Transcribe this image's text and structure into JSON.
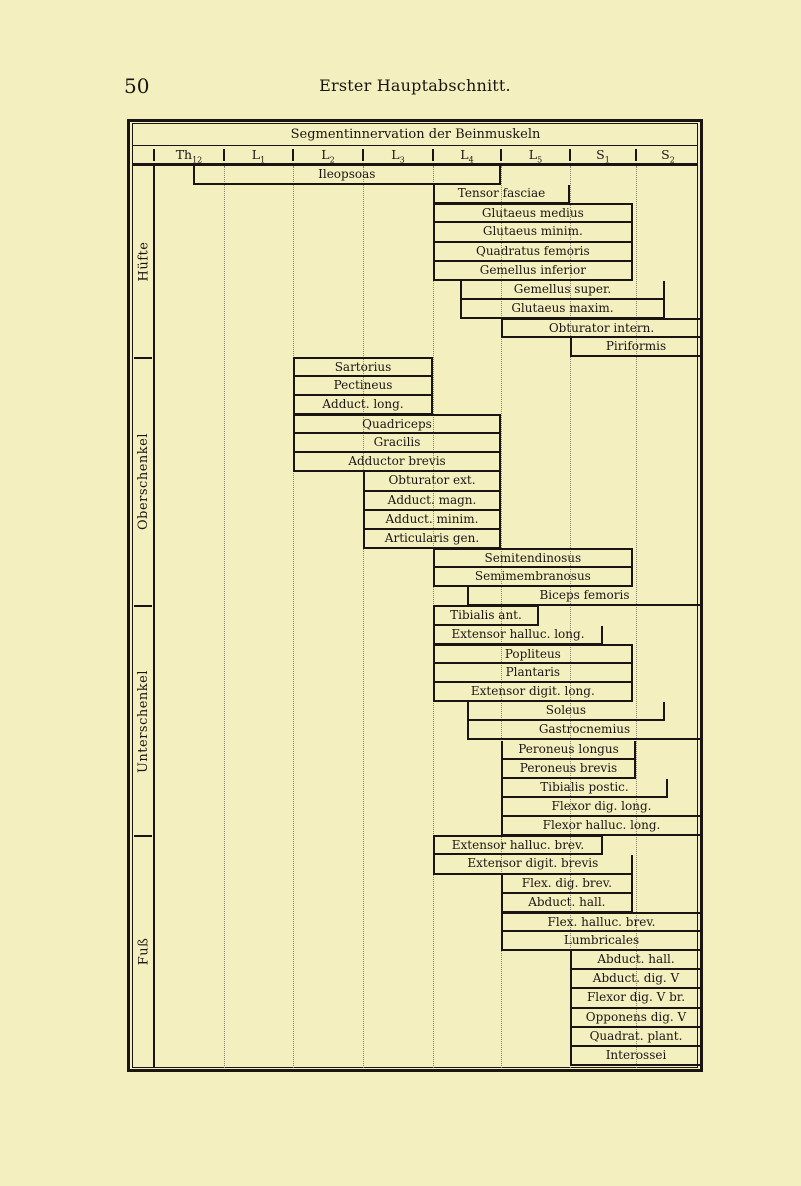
{
  "page": {
    "number": "50",
    "running_title": "Erster Hauptabschnitt."
  },
  "colors": {
    "paper": "#f4efbf",
    "ink": "#1a1512",
    "dotted": "#8a8270"
  },
  "chart_data": {
    "type": "table",
    "title": "Segmentinnervation der Beinmuskeln",
    "columns": [
      "Th12",
      "L1",
      "L2",
      "L3",
      "L4",
      "L5",
      "S1",
      "S2"
    ],
    "column_labels": [
      {
        "base": "Th",
        "sub": "12"
      },
      {
        "base": "L",
        "sub": "1"
      },
      {
        "base": "L",
        "sub": "2"
      },
      {
        "base": "L",
        "sub": "3"
      },
      {
        "base": "L",
        "sub": "4"
      },
      {
        "base": "L",
        "sub": "5"
      },
      {
        "base": "S",
        "sub": "1"
      },
      {
        "base": "S",
        "sub": "2"
      }
    ],
    "note": "span values are segment positions: 0 = start of Th12, 8 = end of S2",
    "sections": [
      {
        "name": "Hüfte",
        "muscles": [
          {
            "label": "Ileopsoas",
            "from": 0.55,
            "to": 5.0,
            "l": true,
            "r": true
          },
          {
            "label": "Tensor fasciae",
            "from": 4.0,
            "to": 6.0,
            "l": true,
            "r": true
          },
          {
            "label": "Glutaeus medius",
            "from": 4.0,
            "to": 6.95,
            "l": true,
            "r": true,
            "t": true
          },
          {
            "label": "Glutaeus minim.",
            "from": 4.0,
            "to": 6.95,
            "l": true,
            "r": true
          },
          {
            "label": "Quadratus femoris",
            "from": 4.0,
            "to": 6.95,
            "l": true,
            "r": true
          },
          {
            "label": "Gemellus inferior",
            "from": 4.0,
            "to": 6.95,
            "l": true,
            "r": true
          },
          {
            "label": "Gemellus super.",
            "from": 4.4,
            "to": 7.45,
            "l": true,
            "r": true
          },
          {
            "label": "Glutaeus maxim.",
            "from": 4.4,
            "to": 7.45,
            "l": true,
            "r": true
          },
          {
            "label": "Obturator intern.",
            "from": 5.0,
            "to": 8.0,
            "l": true,
            "r": false,
            "t": true
          },
          {
            "label": "Piriformis",
            "from": 6.0,
            "to": 8.0,
            "l": true,
            "r": false
          }
        ]
      },
      {
        "name": "Oberschenkel",
        "muscles": [
          {
            "label": "Sartorius",
            "from": 2.0,
            "to": 4.0,
            "l": true,
            "r": true,
            "t": true
          },
          {
            "label": "Pectineus",
            "from": 2.0,
            "to": 4.0,
            "l": true,
            "r": true
          },
          {
            "label": "Adduct. long.",
            "from": 2.0,
            "to": 4.0,
            "l": true,
            "r": true
          },
          {
            "label": "Quadriceps",
            "from": 2.0,
            "to": 5.0,
            "l": true,
            "r": true,
            "t": true
          },
          {
            "label": "Gracilis",
            "from": 2.0,
            "to": 5.0,
            "l": true,
            "r": true
          },
          {
            "label": "Adductor brevis",
            "from": 2.0,
            "to": 5.0,
            "l": true,
            "r": true
          },
          {
            "label": "Obturator ext.",
            "from": 3.0,
            "to": 5.0,
            "l": true,
            "r": true
          },
          {
            "label": "Adduct. magn.",
            "from": 3.0,
            "to": 5.0,
            "l": true,
            "r": true
          },
          {
            "label": "Adduct. minim.",
            "from": 3.0,
            "to": 5.0,
            "l": true,
            "r": true
          },
          {
            "label": "Articularis gen.",
            "from": 3.0,
            "to": 5.0,
            "l": true,
            "r": true
          },
          {
            "label": "Semitendinosus",
            "from": 4.0,
            "to": 6.95,
            "l": true,
            "r": true,
            "t": true
          },
          {
            "label": "Semimembranosus",
            "from": 4.0,
            "to": 6.95,
            "l": true,
            "r": true
          },
          {
            "label": "Biceps femoris",
            "from": 4.5,
            "to": 8.0,
            "l": true,
            "r": false
          }
        ]
      },
      {
        "name": "Unterschenkel",
        "muscles": [
          {
            "label": "Tibialis ant.",
            "from": 4.0,
            "to": 5.55,
            "l": true,
            "r": true,
            "t": true
          },
          {
            "label": "Extensor halluc. long.",
            "from": 4.0,
            "to": 6.5,
            "l": true,
            "r": true
          },
          {
            "label": "Popliteus",
            "from": 4.0,
            "to": 6.95,
            "l": true,
            "r": true,
            "t": true
          },
          {
            "label": "Plantaris",
            "from": 4.0,
            "to": 6.95,
            "l": true,
            "r": true
          },
          {
            "label": "Extensor digit. long.",
            "from": 4.0,
            "to": 6.95,
            "l": true,
            "r": true
          },
          {
            "label": "Soleus",
            "from": 4.5,
            "to": 7.45,
            "l": true,
            "r": true
          },
          {
            "label": "Gastrocnemius",
            "from": 4.5,
            "to": 8.0,
            "l": true,
            "r": false
          },
          {
            "label": "Peroneus longus",
            "from": 5.0,
            "to": 7.0,
            "l": true,
            "r": true
          },
          {
            "label": "Peroneus brevis",
            "from": 5.0,
            "to": 7.0,
            "l": true,
            "r": true
          },
          {
            "label": "Tibialis postic.",
            "from": 5.0,
            "to": 7.5,
            "l": true,
            "r": true
          },
          {
            "label": "Flexor dig. long.",
            "from": 5.0,
            "to": 8.0,
            "l": true,
            "r": false
          },
          {
            "label": "Flexor halluc. long.",
            "from": 5.0,
            "to": 8.0,
            "l": true,
            "r": false
          }
        ]
      },
      {
        "name": "Fuß",
        "muscles": [
          {
            "label": "Extensor halluc. brev.",
            "from": 4.0,
            "to": 6.5,
            "l": true,
            "r": true,
            "t": true
          },
          {
            "label": "Extensor digit. brevis",
            "from": 4.0,
            "to": 6.95,
            "l": true,
            "r": true
          },
          {
            "label": "Flex. dig. brev.",
            "from": 5.0,
            "to": 6.95,
            "l": true,
            "r": true
          },
          {
            "label": "Abduct. hall.",
            "from": 5.0,
            "to": 6.95,
            "l": true,
            "r": true
          },
          {
            "label": "Flex. halluc. brev.",
            "from": 5.0,
            "to": 8.0,
            "l": true,
            "r": false,
            "t": true
          },
          {
            "label": "Lumbricales",
            "from": 5.0,
            "to": 8.0,
            "l": true,
            "r": false
          },
          {
            "label": "Abduct. hall.",
            "from": 6.0,
            "to": 8.0,
            "l": true,
            "r": false
          },
          {
            "label": "Abduct. dig. V",
            "from": 6.0,
            "to": 8.0,
            "l": true,
            "r": false
          },
          {
            "label": "Flexor dig. V br.",
            "from": 6.0,
            "to": 8.0,
            "l": true,
            "r": false
          },
          {
            "label": "Opponens dig. V",
            "from": 6.0,
            "to": 8.0,
            "l": true,
            "r": false
          },
          {
            "label": "Quadrat. plant.",
            "from": 6.0,
            "to": 8.0,
            "l": true,
            "r": false
          },
          {
            "label": "Interossei",
            "from": 6.0,
            "to": 8.0,
            "l": true,
            "r": false
          }
        ]
      }
    ]
  }
}
